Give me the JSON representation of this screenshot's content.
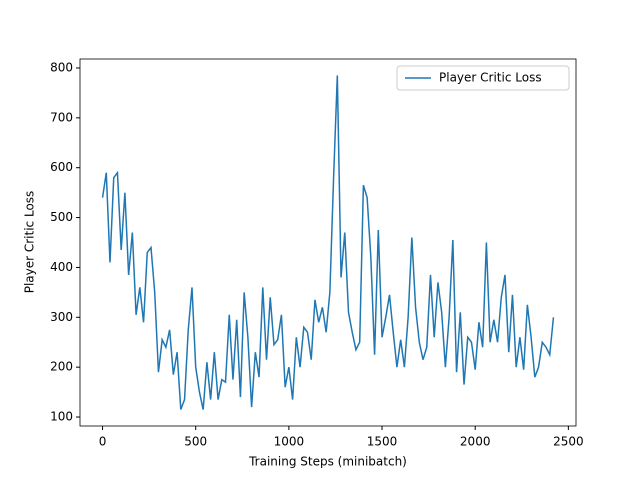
{
  "chart_data": {
    "type": "line",
    "xlabel": "Training Steps (minibatch)",
    "ylabel": "Player Critic Loss",
    "x": [
      0,
      20,
      40,
      60,
      80,
      100,
      120,
      140,
      160,
      180,
      200,
      220,
      240,
      260,
      280,
      300,
      320,
      340,
      360,
      380,
      400,
      420,
      440,
      460,
      480,
      500,
      520,
      540,
      560,
      580,
      600,
      620,
      640,
      660,
      680,
      700,
      720,
      740,
      760,
      780,
      800,
      820,
      840,
      860,
      880,
      900,
      920,
      940,
      960,
      980,
      1000,
      1020,
      1040,
      1060,
      1080,
      1100,
      1120,
      1140,
      1160,
      1180,
      1200,
      1220,
      1240,
      1260,
      1280,
      1300,
      1320,
      1340,
      1360,
      1380,
      1400,
      1420,
      1440,
      1460,
      1480,
      1500,
      1520,
      1540,
      1560,
      1580,
      1600,
      1620,
      1640,
      1660,
      1680,
      1700,
      1720,
      1740,
      1760,
      1780,
      1800,
      1820,
      1840,
      1860,
      1880,
      1900,
      1920,
      1940,
      1960,
      1980,
      2000,
      2020,
      2040,
      2060,
      2080,
      2100,
      2120,
      2140,
      2160,
      2180,
      2200,
      2220,
      2240,
      2260,
      2280,
      2300,
      2320,
      2340,
      2360,
      2380,
      2400,
      2420
    ],
    "series": [
      {
        "name": "Player Critic Loss",
        "color": "#1f77b4",
        "values": [
          540,
          590,
          410,
          580,
          590,
          435,
          550,
          385,
          470,
          305,
          360,
          290,
          430,
          440,
          350,
          190,
          255,
          240,
          275,
          185,
          230,
          115,
          135,
          275,
          360,
          200,
          150,
          115,
          210,
          135,
          230,
          135,
          175,
          170,
          305,
          175,
          295,
          140,
          350,
          260,
          120,
          230,
          180,
          360,
          215,
          340,
          245,
          255,
          305,
          160,
          200,
          135,
          260,
          200,
          280,
          270,
          215,
          335,
          290,
          320,
          270,
          350,
          580,
          785,
          380,
          470,
          310,
          270,
          235,
          250,
          565,
          540,
          420,
          225,
          475,
          260,
          300,
          345,
          270,
          200,
          255,
          200,
          300,
          460,
          320,
          250,
          215,
          240,
          385,
          260,
          370,
          310,
          200,
          300,
          455,
          190,
          310,
          165,
          260,
          250,
          195,
          290,
          240,
          450,
          250,
          295,
          250,
          340,
          385,
          230,
          345,
          200,
          260,
          195,
          325,
          260,
          180,
          200,
          250,
          240,
          225,
          300
        ]
      }
    ],
    "xlim": [
      -121,
      2541
    ],
    "ylim": [
      82,
      818
    ],
    "xticks": [
      0,
      500,
      1000,
      1500,
      2000,
      2500
    ],
    "yticks": [
      100,
      200,
      300,
      400,
      500,
      600,
      700,
      800
    ],
    "legend": "upper right"
  }
}
